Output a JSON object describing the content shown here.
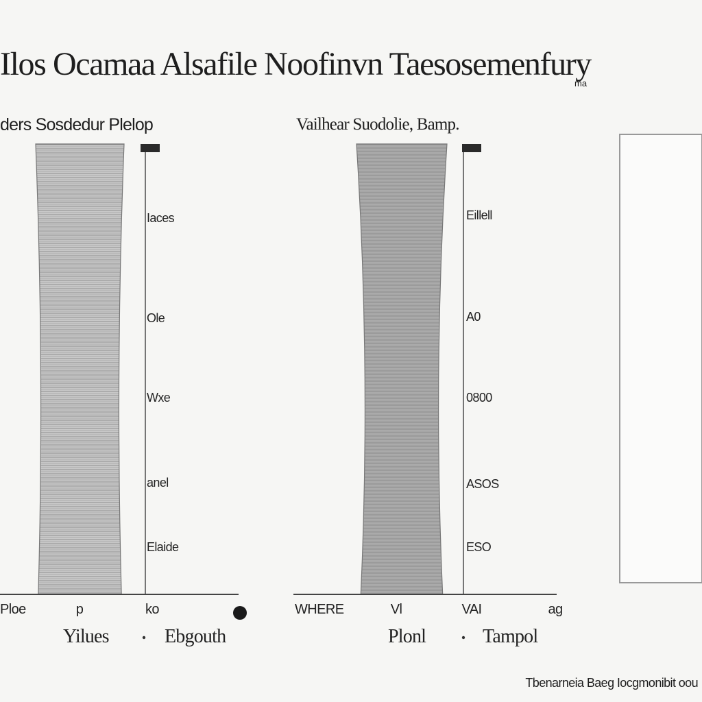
{
  "page": {
    "title": "Ilos Ocamaa Alsafile Noofinvn Taesosemenfury",
    "title_sub": "ma",
    "footer": "Tbenarneia Baeg Iocgmonibit oou"
  },
  "chart_data": [
    {
      "type": "bar",
      "title": "ders Sosdedur Plelop",
      "categories": [
        "Ploe"
      ],
      "values": [
        100
      ],
      "ytick_labels": [
        "",
        "Iaces",
        "Ole",
        "Wxe",
        "anel",
        "Elaide"
      ],
      "xtick_labels": [
        "Ploe",
        "p",
        "ko"
      ],
      "xlabels": [
        "Yilues",
        "Ebgouth"
      ],
      "bar_color": "#b8b8b8",
      "ylim": [
        0,
        100
      ],
      "grid": false,
      "legend": "none"
    },
    {
      "type": "bar",
      "title": "Vailhear Suodolie, Bamp.",
      "categories": [
        "WHERE"
      ],
      "values": [
        100
      ],
      "ytick_labels": [
        "",
        "Eillell",
        "A0",
        "0800",
        "ASOS",
        "ESO"
      ],
      "xtick_labels": [
        "WHERE",
        "Vl",
        "VAI",
        "ag"
      ],
      "xlabels": [
        "Plonl",
        "Tampol"
      ],
      "bar_color": "#999999",
      "ylim": [
        0,
        100
      ],
      "grid": false,
      "legend": "none"
    }
  ]
}
